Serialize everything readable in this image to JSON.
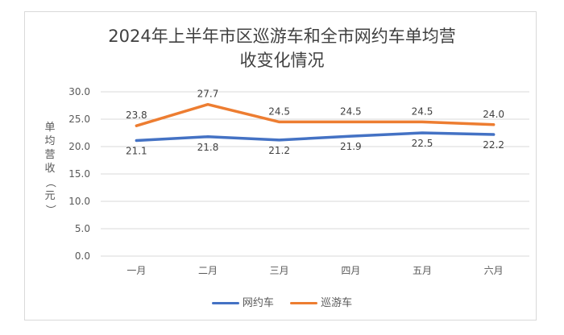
{
  "title_line1": "2024年上半年市区巡游车和全市网约车单均营",
  "title_line2": "收变化情况",
  "ylabel": "单均营收（元）",
  "legend": [
    {
      "label": "网约车",
      "color": "#4472C4"
    },
    {
      "label": "巡游车",
      "color": "#ED7D31"
    }
  ],
  "chart_data": {
    "type": "line",
    "title": "2024年上半年市区巡游车和全市网约车单均营收变化情况",
    "ylabel": "单均营收（元）",
    "xlabel": "",
    "categories": [
      "一月",
      "二月",
      "三月",
      "四月",
      "五月",
      "六月"
    ],
    "ylim": [
      0,
      30
    ],
    "yticks": [
      "0.0",
      "5.0",
      "10.0",
      "15.0",
      "20.0",
      "25.0",
      "30.0"
    ],
    "grid": true,
    "legend_position": "bottom",
    "series": [
      {
        "name": "网约车",
        "color": "#4472C4",
        "values": [
          21.1,
          21.8,
          21.2,
          21.9,
          22.5,
          22.2
        ],
        "labels": [
          "21.1",
          "21.8",
          "21.2",
          "21.9",
          "22.5",
          "22.2"
        ]
      },
      {
        "name": "巡游车",
        "color": "#ED7D31",
        "values": [
          23.8,
          27.7,
          24.5,
          24.5,
          24.5,
          24.0
        ],
        "labels": [
          "23.8",
          "27.7",
          "24.5",
          "24.5",
          "24.5",
          "24.0"
        ]
      }
    ]
  }
}
